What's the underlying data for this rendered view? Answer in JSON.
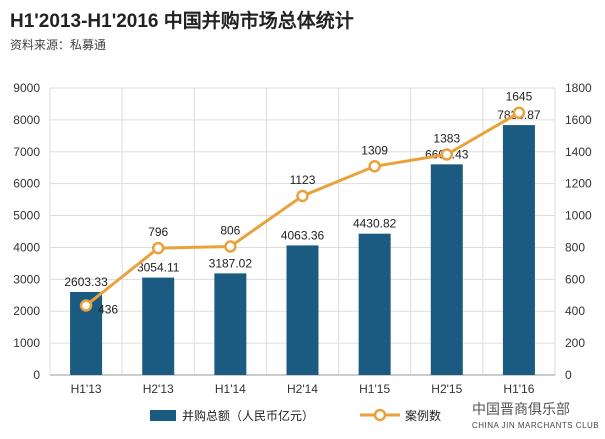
{
  "chart_data": {
    "type": "bar+line",
    "title": "H1'2013-H1'2016 中国并购市场总体统计",
    "subtitle": "资料来源：私募通",
    "categories": [
      "H1'13",
      "H2'13",
      "H1'14",
      "H2'14",
      "H1'15",
      "H2'15",
      "H1'16"
    ],
    "series": [
      {
        "name": "并购总额（人民币亿元）",
        "type": "bar",
        "axis": "left",
        "color": "#1b5b82",
        "values": [
          2603.33,
          3054.11,
          3187.02,
          4063.36,
          4430.82,
          6606.43,
          7836.87
        ],
        "labels": [
          "2603.33",
          "3054.11",
          "3187.02",
          "4063.36",
          "4430.82",
          "6606.43",
          "7836.87"
        ]
      },
      {
        "name": "案例数",
        "type": "line",
        "axis": "right",
        "color": "#e9a23b",
        "values": [
          436,
          796,
          806,
          1123,
          1309,
          1383,
          1645
        ],
        "labels": [
          "436",
          "796",
          "806",
          "1123",
          "1309",
          "1383",
          "1645"
        ]
      }
    ],
    "left_axis": {
      "ylim": [
        0,
        9000
      ],
      "ticks": [
        "0",
        "1000",
        "2000",
        "3000",
        "4000",
        "5000",
        "6000",
        "7000",
        "8000",
        "9000"
      ]
    },
    "right_axis": {
      "ylim": [
        0,
        1800
      ],
      "ticks": [
        "0",
        "200",
        "400",
        "600",
        "800",
        "1000",
        "1200",
        "1400",
        "1600",
        "1800"
      ]
    },
    "legend": "bottom"
  },
  "watermark": {
    "cn": "中国晋商俱乐部",
    "en": "CHINA JIN MARCHANTS CLUB"
  }
}
